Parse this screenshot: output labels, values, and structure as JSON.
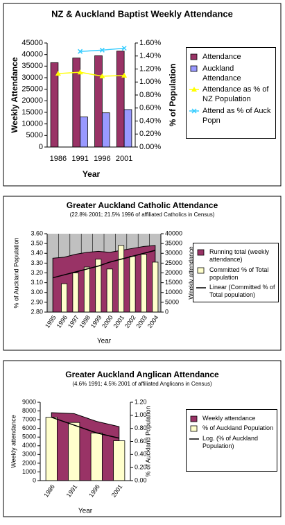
{
  "chart_data": [
    {
      "type": "combo",
      "title": "NZ & Auckland Baptist Weekly Attendance",
      "x_label": "Year",
      "y_label": "Weekly Attendance",
      "y2_label": "% of Population",
      "categories": [
        "1986",
        "1991",
        "1996",
        "2001"
      ],
      "series": [
        {
          "name": "Attendance",
          "type": "bar",
          "color": "#993366",
          "values": [
            36500,
            38500,
            39500,
            41500
          ]
        },
        {
          "name": "Auckland Attendance",
          "type": "bar",
          "color": "#9999ff",
          "values": [
            null,
            13000,
            14800,
            16200
          ]
        },
        {
          "name": "Attendance as % of NZ Population",
          "type": "line",
          "marker": "triangle",
          "color": "#ffff00",
          "axis": "y2",
          "values": [
            1.13,
            1.15,
            1.09,
            1.1
          ]
        },
        {
          "name": "Attend as % of Auck Popn",
          "type": "line",
          "marker": "x",
          "color": "#33ccff",
          "axis": "y2",
          "values": [
            null,
            1.47,
            1.49,
            1.52
          ]
        }
      ],
      "ylim": [
        0,
        45000
      ],
      "yticks": [
        0,
        5000,
        10000,
        15000,
        20000,
        25000,
        30000,
        35000,
        40000,
        45000
      ],
      "y2lim": [
        0,
        1.6
      ],
      "y2ticks": [
        {
          "value": 0,
          "label": "0.00%"
        },
        {
          "value": 0.2,
          "label": "0.20%"
        },
        {
          "value": 0.4,
          "label": "0.40%"
        },
        {
          "value": 0.6,
          "label": "0.60%"
        },
        {
          "value": 0.8,
          "label": "0.80%"
        },
        {
          "value": 1,
          "label": "1.00%"
        },
        {
          "value": 1.2,
          "label": "1.20%"
        },
        {
          "value": 1.4,
          "label": "1.40%"
        },
        {
          "value": 1.6,
          "label": "1.60%"
        }
      ],
      "plot_background": "#ffffff",
      "grid": false
    },
    {
      "type": "combo",
      "title": "Greater Auckland Catholic Attendance",
      "subtitle": "(22.8% 2001; 21.5% 1996 of affiliated Catholics in Census)",
      "x_label": "Year",
      "y_label": "% of Auckland Population",
      "y2_label": "Weekly attendance",
      "categories": [
        "1995",
        "1996",
        "1997",
        "1998",
        "1999",
        "2000",
        "2001",
        "2002",
        "2003",
        "2004"
      ],
      "series": [
        {
          "name": "Running total (weekly attendance)",
          "type": "area",
          "color": "#993366",
          "axis": "y2",
          "values": [
            27500,
            28000,
            29500,
            30500,
            31000,
            30500,
            31500,
            32500,
            33500,
            34000
          ]
        },
        {
          "name": "Committed % of Total population",
          "type": "bar",
          "color": "#ffffcc",
          "values": [
            null,
            3.09,
            3.2,
            3.26,
            3.34,
            3.24,
            3.48,
            3.37,
            3.39,
            3.31
          ]
        },
        {
          "name": "Linear (Committed % of Total population)",
          "type": "line",
          "color": "#000000",
          "values": [
            3.15,
            3.18,
            3.21,
            3.24,
            3.27,
            3.31,
            3.34,
            3.37,
            3.4,
            3.43
          ]
        }
      ],
      "ylim": [
        2.8,
        3.6
      ],
      "yticks": [
        {
          "value": 2.8,
          "label": "2.80"
        },
        {
          "value": 2.9,
          "label": "2.90"
        },
        {
          "value": 3,
          "label": "3.00"
        },
        {
          "value": 3.1,
          "label": "3.10"
        },
        {
          "value": 3.2,
          "label": "3.20"
        },
        {
          "value": 3.3,
          "label": "3.30"
        },
        {
          "value": 3.4,
          "label": "3.40"
        },
        {
          "value": 3.5,
          "label": "3.50"
        },
        {
          "value": 3.6,
          "label": "3.60"
        }
      ],
      "y2lim": [
        0,
        40000
      ],
      "y2ticks": [
        0,
        5000,
        10000,
        15000,
        20000,
        25000,
        30000,
        35000,
        40000
      ],
      "plot_background": "#c0c0c0",
      "grid": true
    },
    {
      "type": "combo",
      "title": "Greater Auckland Anglican Attendance",
      "subtitle": "(4.6% 1991; 4.5% 2001 of affiliated Anglicans in Census)",
      "x_label": "Year",
      "y_label": "Weekly attendance",
      "y2_label": "% of Auckland Population",
      "categories": [
        "1986",
        "1991",
        "1996",
        "2001"
      ],
      "series": [
        {
          "name": "Weekly attendance",
          "type": "area",
          "color": "#993366",
          "values": [
            7800,
            7700,
            6800,
            6200
          ]
        },
        {
          "name": "% of Auckland Population",
          "type": "bar",
          "color": "#ffffcc",
          "axis": "y2",
          "values": [
            0.97,
            0.89,
            0.73,
            0.61
          ]
        },
        {
          "name": "Log. (% of Auckland Population)",
          "type": "line",
          "color": "#000000",
          "axis": "y2",
          "values": [
            0.97,
            0.85,
            0.73,
            0.65
          ]
        }
      ],
      "ylim": [
        0,
        9000
      ],
      "yticks": [
        0,
        1000,
        2000,
        3000,
        4000,
        5000,
        6000,
        7000,
        8000,
        9000
      ],
      "y2lim": [
        0,
        1.2
      ],
      "y2ticks": [
        {
          "value": 0,
          "label": "0.00"
        },
        {
          "value": 0.2,
          "label": "0.20"
        },
        {
          "value": 0.4,
          "label": "0.40"
        },
        {
          "value": 0.6,
          "label": "0.60"
        },
        {
          "value": 0.8,
          "label": "0.80"
        },
        {
          "value": 1,
          "label": "1.00"
        },
        {
          "value": 1.2,
          "label": "1.20"
        }
      ],
      "plot_background": "#ffffff",
      "grid": false
    }
  ]
}
